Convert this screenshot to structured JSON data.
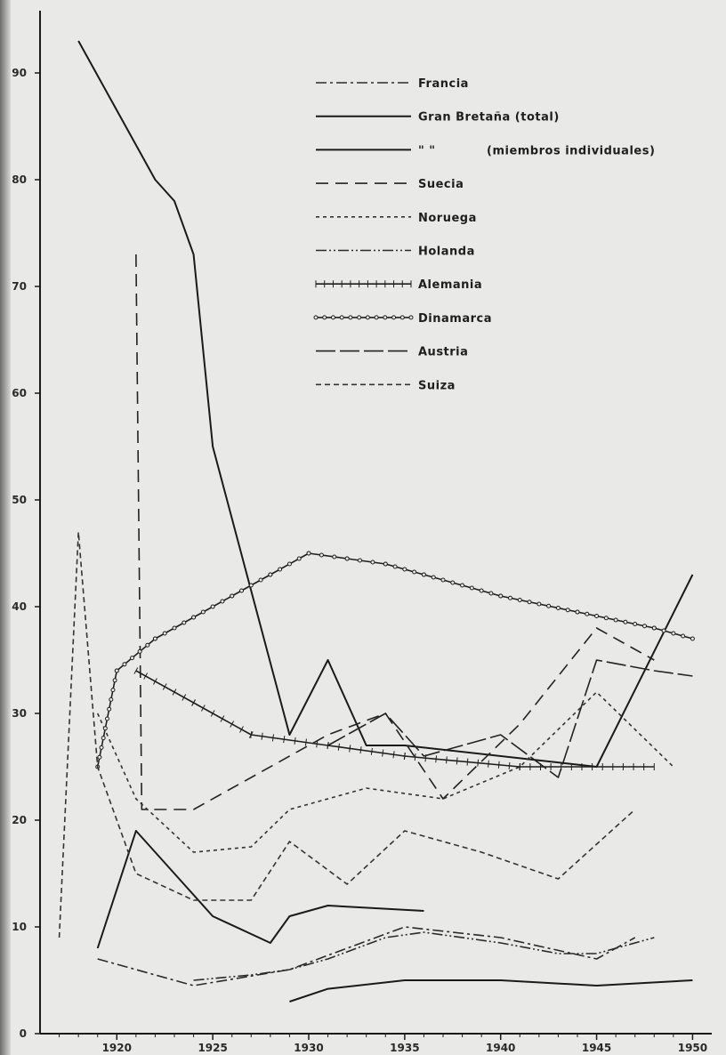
{
  "chart_data": {
    "type": "line",
    "title": "",
    "xlabel": "",
    "ylabel": "",
    "xlim": [
      1916,
      1951
    ],
    "ylim": [
      0,
      95
    ],
    "x_ticks": [
      1920,
      1925,
      1930,
      1935,
      1940,
      1945,
      1950
    ],
    "y_ticks": [
      0,
      10,
      20,
      30,
      40,
      50,
      60,
      70,
      80,
      90
    ],
    "x_tick_labels": [
      "1920",
      "1925",
      "1930",
      "1935",
      "1940",
      "1945",
      "1950"
    ],
    "y_tick_labels": [
      "0",
      "10",
      "20",
      "30",
      "40",
      "50",
      "60",
      "70",
      "80",
      "90"
    ],
    "grid": false,
    "legend_position": "top-right",
    "series": [
      {
        "name": "Francia",
        "style": "dashdot",
        "color": "#2a2a2a",
        "x": [
          1919,
          1921,
          1924,
          1929,
          1932,
          1935,
          1940,
          1945,
          1947
        ],
        "y": [
          7,
          6,
          4.5,
          6,
          8,
          10,
          9,
          7,
          9
        ]
      },
      {
        "name": "Gran Bretaña (total)",
        "style": "solid",
        "color": "#1a1a1a",
        "x": [
          1918,
          1922,
          1923,
          1924,
          1925,
          1929,
          1931,
          1933,
          1935,
          1945,
          1950
        ],
        "y": [
          93,
          80,
          78,
          73,
          55,
          28,
          35,
          27,
          27,
          25,
          43
        ]
      },
      {
        "name": "\"        \"",
        "name_suffix": "(miembros individuales)",
        "style": "solid",
        "color": "#1a1a1a",
        "x": [
          1919,
          1921,
          1923,
          1925,
          1928,
          1929,
          1931,
          1936
        ],
        "y": [
          8,
          19,
          15,
          11,
          8.5,
          11,
          12,
          11.5
        ]
      },
      {
        "name": "Suecia",
        "style": "dashed",
        "color": "#222",
        "x": [
          1921,
          1921.3,
          1924,
          1931,
          1934,
          1937,
          1941,
          1945,
          1948
        ],
        "y": [
          73,
          21,
          21,
          28,
          30,
          22,
          29,
          38,
          35
        ]
      },
      {
        "name": "Noruega",
        "style": "dotted",
        "color": "#333",
        "x": [
          1919,
          1921,
          1924,
          1927,
          1929,
          1933,
          1937,
          1941,
          1945,
          1949
        ],
        "y": [
          30,
          22,
          17,
          17.5,
          21,
          23,
          22,
          25,
          32,
          25
        ]
      },
      {
        "name": "Holanda",
        "style": "dashdotdot",
        "color": "#2a2a2a",
        "x": [
          1924,
          1927,
          1929,
          1931,
          1934,
          1936,
          1940,
          1943,
          1945,
          1948
        ],
        "y": [
          5,
          5.5,
          6,
          7,
          9,
          9.5,
          8.5,
          7.5,
          7.5,
          9
        ]
      },
      {
        "name": "Alemania",
        "style": "solid-ticked",
        "color": "#1f1f1f",
        "x": [
          1921,
          1924,
          1927,
          1931,
          1935,
          1941,
          1948
        ],
        "y": [
          34,
          31,
          28,
          27,
          26,
          25,
          25
        ]
      },
      {
        "name": "Dinamarca",
        "style": "solid-circles",
        "color": "#1f1f1f",
        "x": [
          1919,
          1920,
          1922,
          1924,
          1926,
          1928,
          1930,
          1932,
          1934,
          1936,
          1940,
          1944,
          1948,
          1950
        ],
        "y": [
          25,
          34,
          37,
          39,
          41,
          43,
          45,
          44.5,
          44,
          43,
          41,
          39.5,
          38,
          37
        ]
      },
      {
        "name": "Austria",
        "style": "long-dash",
        "color": "#222",
        "x": [
          1931,
          1934,
          1936,
          1938,
          1940,
          1943,
          1945,
          1948,
          1950
        ],
        "y": [
          27,
          30,
          26,
          27,
          28,
          24,
          35,
          34,
          33.5
        ]
      },
      {
        "name": "Suiza",
        "style": "short-dash",
        "color": "#333",
        "x": [
          1917,
          1918,
          1919,
          1921,
          1924,
          1927,
          1929,
          1932,
          1935,
          1939,
          1943,
          1947
        ],
        "y": [
          9,
          47,
          25,
          15,
          12.5,
          12.5,
          18,
          14,
          19,
          17,
          14.5,
          21
        ]
      },
      {
        "name": "",
        "style": "solid",
        "color": "#1a1a1a",
        "x": [
          1929,
          1931,
          1935,
          1940,
          1945,
          1950
        ],
        "y": [
          3,
          4.2,
          5,
          5,
          4.5,
          5
        ]
      }
    ]
  }
}
